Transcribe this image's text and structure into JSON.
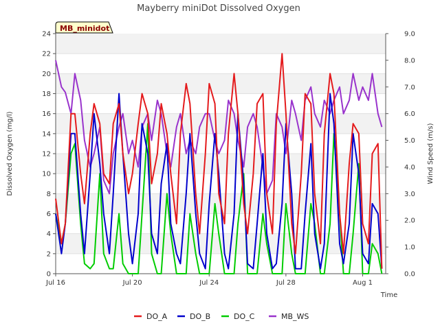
{
  "chart_data": {
    "type": "line",
    "title": "Mayberry miniDot Dissolved Oxygen",
    "site_label": "MB_minidot",
    "xlabel": "Time",
    "ylabel_left": "Dissolved Oxygen (mg/l)",
    "ylabel_right": "Wind Speed (m/s)",
    "x_range_days": [
      "2024-07-16",
      "2024-08-02"
    ],
    "x_ticks": [
      {
        "label": "Jul 16",
        "day": 0
      },
      {
        "label": "Jul 20",
        "day": 4
      },
      {
        "label": "Jul 24",
        "day": 8
      },
      {
        "label": "Jul 28",
        "day": 12
      },
      {
        "label": "Aug 1",
        "day": 16
      }
    ],
    "y_left": {
      "min": 0,
      "max": 24,
      "ticks": [
        "0",
        "2",
        "4",
        "6",
        "8",
        "10",
        "12",
        "14",
        "16",
        "18",
        "20",
        "22",
        "24"
      ]
    },
    "y_right": {
      "min": 0,
      "max": 9,
      "ticks": [
        "0.0",
        "1.0",
        "2.0",
        "3.0",
        "4.0",
        "5.0",
        "6.0",
        "7.0",
        "8.0",
        "9.0"
      ]
    },
    "grid": "horizontal bands",
    "legend_position": "bottom",
    "series": [
      {
        "name": "DO_A",
        "color": "#e41a1c",
        "axis": "left",
        "x": [
          0,
          0.3,
          0.5,
          0.8,
          1.0,
          1.3,
          1.5,
          1.8,
          2.0,
          2.3,
          2.5,
          2.8,
          3.0,
          3.3,
          3.5,
          3.8,
          4.0,
          4.3,
          4.5,
          4.8,
          5.0,
          5.3,
          5.5,
          5.8,
          6.0,
          6.3,
          6.5,
          6.8,
          7.0,
          7.3,
          7.5,
          7.8,
          8.0,
          8.3,
          8.5,
          8.8,
          9.0,
          9.3,
          9.5,
          9.8,
          10.0,
          10.3,
          10.5,
          10.8,
          11.0,
          11.3,
          11.5,
          11.8,
          12.0,
          12.3,
          12.5,
          12.8,
          13.0,
          13.3,
          13.5,
          13.8,
          14.0,
          14.3,
          14.5,
          14.8,
          15.0,
          15.3,
          15.5,
          15.8,
          16.0,
          16.3,
          16.5,
          16.8,
          17.0
        ],
        "y": [
          7.5,
          3,
          5,
          16,
          16,
          10,
          7,
          14,
          17,
          15,
          10,
          9,
          15,
          17,
          12,
          8,
          10,
          15,
          18,
          16,
          9,
          12,
          17,
          14,
          10,
          5,
          14,
          19,
          17,
          8,
          4,
          12,
          19,
          17,
          8,
          5,
          14,
          20,
          16,
          7,
          4,
          10,
          17,
          18,
          8,
          4,
          15,
          22,
          16,
          5,
          2,
          10,
          18,
          17,
          8,
          3,
          14,
          20,
          18,
          6,
          2,
          11,
          15,
          14,
          5,
          3,
          12,
          13,
          0.5
        ]
      },
      {
        "name": "DO_B",
        "color": "#0000cc",
        "axis": "left",
        "x": [
          0,
          0.3,
          0.5,
          0.8,
          1.0,
          1.3,
          1.5,
          1.8,
          2.0,
          2.3,
          2.5,
          2.8,
          3.0,
          3.3,
          3.5,
          3.8,
          4.0,
          4.3,
          4.5,
          4.8,
          5.0,
          5.3,
          5.5,
          5.8,
          6.0,
          6.3,
          6.5,
          6.8,
          7.0,
          7.3,
          7.5,
          7.8,
          8.0,
          8.3,
          8.5,
          8.8,
          9.0,
          9.3,
          9.5,
          9.8,
          10.0,
          10.3,
          10.5,
          10.8,
          11.0,
          11.3,
          11.5,
          11.8,
          12.0,
          12.3,
          12.5,
          12.8,
          13.0,
          13.3,
          13.5,
          13.8,
          14.0,
          14.3,
          14.5,
          14.8,
          15.0,
          15.3,
          15.5,
          15.8,
          16.0,
          16.3,
          16.5,
          16.8,
          17.0
        ],
        "y": [
          6,
          2,
          5,
          14,
          14,
          6,
          2,
          10,
          16,
          11,
          6,
          2,
          8,
          18,
          12,
          4,
          1,
          6,
          15,
          12,
          4,
          2,
          9,
          13,
          5,
          2,
          1,
          8,
          14,
          6,
          2,
          0.5,
          7,
          14,
          10,
          2,
          0.5,
          6,
          16,
          9,
          1,
          0.5,
          5,
          12,
          4,
          0.5,
          1,
          7,
          15,
          8,
          0.5,
          0.5,
          6,
          13,
          4,
          0.5,
          3,
          18,
          15,
          3,
          1,
          5,
          14,
          10,
          2,
          1,
          7,
          6,
          0.5
        ]
      },
      {
        "name": "DO_C",
        "color": "#00cc00",
        "axis": "left",
        "x": [
          0,
          0.3,
          0.5,
          0.8,
          1.0,
          1.3,
          1.5,
          1.8,
          2.0,
          2.3,
          2.5,
          2.8,
          3.0,
          3.3,
          3.5,
          3.8,
          4.0,
          4.3,
          4.5,
          4.8,
          5.0,
          5.3,
          5.5,
          5.8,
          6.0,
          6.3,
          6.5,
          6.8,
          7.0,
          7.3,
          7.5,
          7.8,
          8.0,
          8.3,
          8.5,
          8.8,
          9.0,
          9.3,
          9.5,
          9.8,
          10.0,
          10.3,
          10.5,
          10.8,
          11.0,
          11.3,
          11.5,
          11.8,
          12.0,
          12.3,
          12.5,
          12.8,
          13.0,
          13.3,
          13.5,
          13.8,
          14.0,
          14.3,
          14.5,
          14.8,
          15.0,
          15.3,
          15.5,
          15.8,
          16.0,
          16.3,
          16.5,
          16.8,
          17.0
        ],
        "y": [
          6,
          3,
          5,
          12,
          13,
          5,
          1,
          0.5,
          1,
          10,
          2,
          0.5,
          0.5,
          6,
          1,
          0,
          0,
          0,
          6,
          15,
          2,
          0,
          0,
          8,
          4,
          0,
          0,
          0,
          6,
          2,
          0,
          0,
          0,
          7,
          4,
          0,
          0,
          0,
          5,
          10,
          0,
          0,
          0,
          6,
          3,
          0,
          0,
          0,
          7,
          2,
          0,
          0,
          0,
          7,
          5,
          0,
          0,
          5,
          14,
          6,
          0,
          0,
          4,
          11,
          0,
          0,
          3,
          2,
          0
        ]
      },
      {
        "name": "MB_WS",
        "color": "#9933cc",
        "axis": "right",
        "x": [
          0,
          0.3,
          0.5,
          0.8,
          1.0,
          1.3,
          1.5,
          1.8,
          2.0,
          2.3,
          2.5,
          2.8,
          3.0,
          3.3,
          3.5,
          3.8,
          4.0,
          4.3,
          4.5,
          4.8,
          5.0,
          5.3,
          5.5,
          5.8,
          6.0,
          6.3,
          6.5,
          6.8,
          7.0,
          7.3,
          7.5,
          7.8,
          8.0,
          8.3,
          8.5,
          8.8,
          9.0,
          9.3,
          9.5,
          9.8,
          10.0,
          10.3,
          10.5,
          10.8,
          11.0,
          11.3,
          11.5,
          11.8,
          12.0,
          12.3,
          12.5,
          12.8,
          13.0,
          13.3,
          13.5,
          13.8,
          14.0,
          14.3,
          14.5,
          14.8,
          15.0,
          15.3,
          15.5,
          15.8,
          16.0,
          16.3,
          16.5,
          16.8,
          17.0
        ],
        "y": [
          8.0,
          7.0,
          6.8,
          6.0,
          7.5,
          6.5,
          5.0,
          4.0,
          4.5,
          5.5,
          3.5,
          3.0,
          4.5,
          5.5,
          6.0,
          4.5,
          5.0,
          4.0,
          5.5,
          6.0,
          5.0,
          6.5,
          6.0,
          4.5,
          4.0,
          5.5,
          6.0,
          4.5,
          5.0,
          4.5,
          5.5,
          6.0,
          6.0,
          5.0,
          4.5,
          5.0,
          6.5,
          6.0,
          5.0,
          4.0,
          5.5,
          6.0,
          5.5,
          4.0,
          3.0,
          3.5,
          6.0,
          5.5,
          4.5,
          6.5,
          6.0,
          5.0,
          6.5,
          7.0,
          6.0,
          5.5,
          6.5,
          6.0,
          6.5,
          7.0,
          6.0,
          6.5,
          7.5,
          6.5,
          7.0,
          6.5,
          7.5,
          6.0,
          5.5
        ]
      }
    ]
  }
}
